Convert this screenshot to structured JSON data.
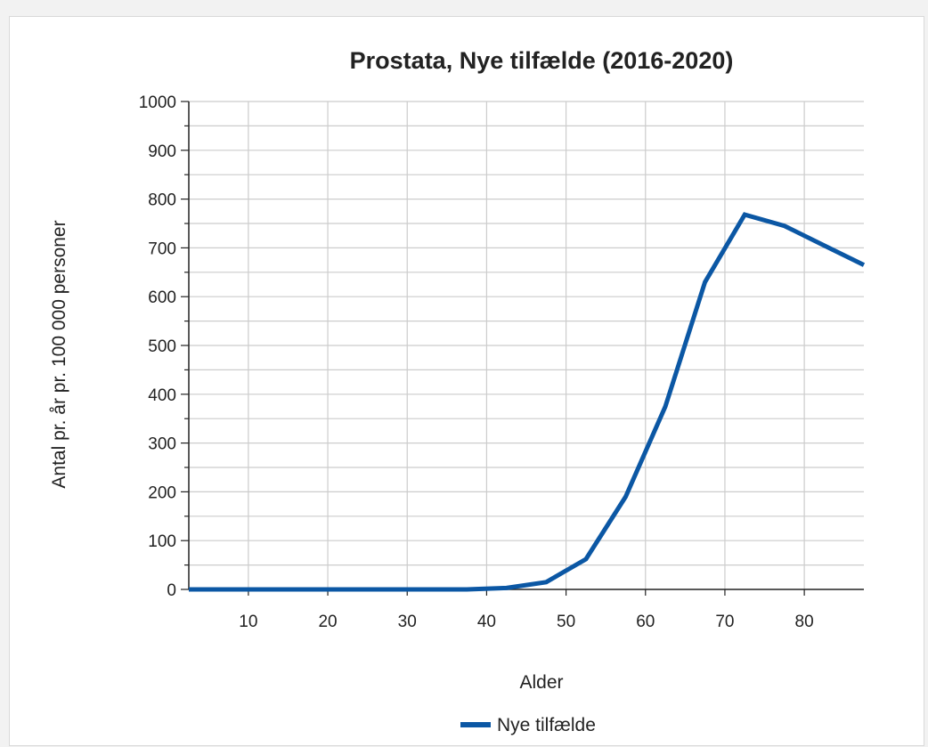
{
  "chart_data": {
    "type": "line",
    "title": "Prostata, Nye tilfælde (2016-2020)",
    "xlabel": "Alder",
    "ylabel": "Antal pr. år pr. 100 000 personer",
    "xlim": [
      2.5,
      87.5
    ],
    "ylim": [
      0,
      1000
    ],
    "xticks": [
      10,
      20,
      30,
      40,
      50,
      60,
      70,
      80
    ],
    "yticks": [
      0,
      100,
      200,
      300,
      400,
      500,
      600,
      700,
      800,
      900,
      1000
    ],
    "grid": true,
    "legend_position": "bottom-center",
    "series": [
      {
        "name": "Nye tilfælde",
        "color": "#0b57a4",
        "x": [
          2.5,
          7.5,
          12.5,
          17.5,
          22.5,
          27.5,
          32.5,
          37.5,
          42.5,
          47.5,
          52.5,
          57.5,
          62.5,
          67.5,
          72.5,
          77.5,
          82.5,
          87.5
        ],
        "y": [
          0,
          0,
          0,
          0,
          0,
          0,
          0,
          0,
          3,
          15,
          62,
          190,
          375,
          630,
          768,
          745,
          705,
          665
        ]
      }
    ]
  }
}
